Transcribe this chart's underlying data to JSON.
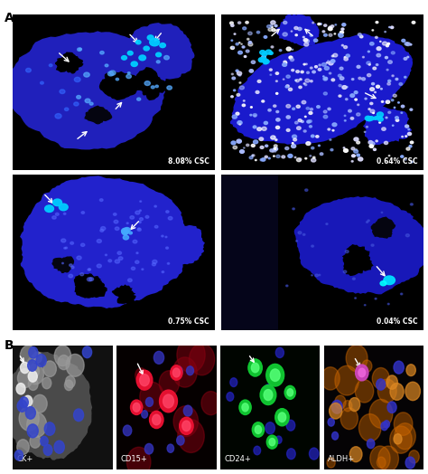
{
  "figure_label_A": "A",
  "figure_label_B": "B",
  "panel_A_labels": [
    "8.08% CSC",
    "0.64% CSC",
    "0.75% CSC",
    "0.04% CSC"
  ],
  "panel_B_labels": [
    "CK+",
    "CD15+",
    "CD24+",
    "ALDH+"
  ],
  "bg_color": "#ffffff",
  "figsize": [
    4.74,
    5.24
  ],
  "dpi": 100
}
